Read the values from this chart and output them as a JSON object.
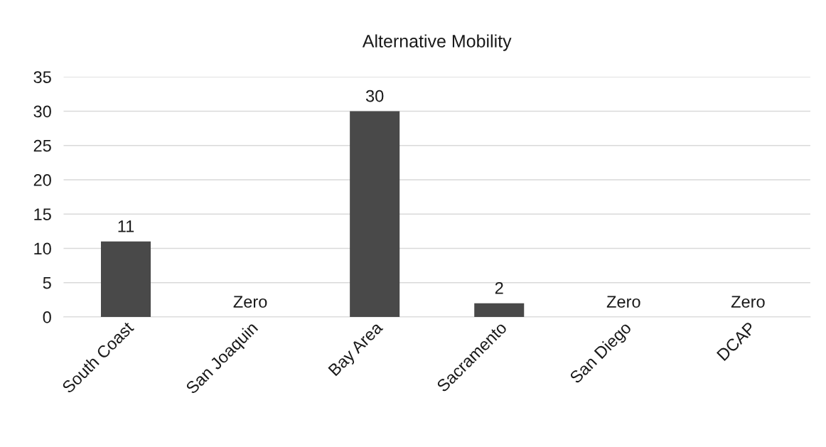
{
  "chart_data": {
    "type": "bar",
    "title": "Alternative Mobility",
    "categories": [
      "South Coast",
      "San Joaquin",
      "Bay Area",
      "Sacramento",
      "San Diego",
      "DCAP"
    ],
    "values": [
      11,
      0,
      30,
      2,
      0,
      0
    ],
    "value_labels": [
      "11",
      "Zero",
      "30",
      "2",
      "Zero",
      "Zero"
    ],
    "color": "#494949",
    "ylim": [
      0,
      35
    ],
    "yticks": [
      0,
      5,
      10,
      15,
      20,
      25,
      30,
      35
    ],
    "grid": "y"
  }
}
